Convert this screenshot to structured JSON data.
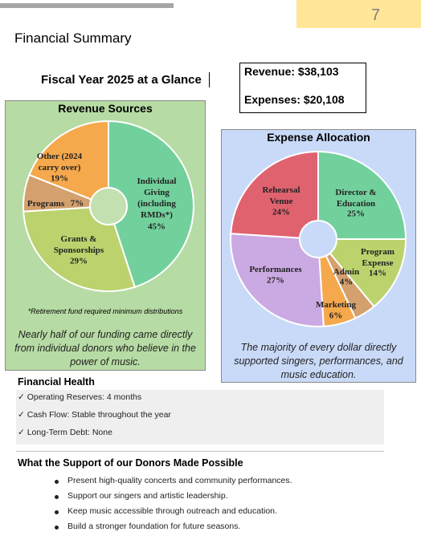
{
  "page_number": "7",
  "header": {
    "title": "Financial Summary"
  },
  "subtitle": "Fiscal Year 2025 at a Glance",
  "totals": [
    "Revenue: $38,103",
    "Expenses: $20,108"
  ],
  "chart_data": [
    {
      "type": "pie",
      "title": "Revenue Sources",
      "categories": [
        "Individual Giving (including RMDs*)",
        "Grants & Sponsorships",
        "Programs",
        "Other (2024 carry over)"
      ],
      "values": [
        45,
        29,
        7,
        19
      ],
      "value_labels": [
        "45%",
        "29%",
        "7%",
        "19%"
      ],
      "colors": [
        "#72d09c",
        "#bcd26d",
        "#d4a06e",
        "#f5a84c"
      ],
      "note": "*Retirement fund required minimum distributions",
      "caption": "Nearly half of our funding came directly from individual donors who believe in the power of music."
    },
    {
      "type": "pie",
      "title": "Expense Allocation",
      "categories": [
        "Director & Education",
        "Program Expense",
        "Admin",
        "Marketing",
        "Performances",
        "Rehearsal Venue"
      ],
      "values": [
        25,
        14,
        4,
        6,
        27,
        24
      ],
      "value_labels": [
        "25%",
        "14%",
        "4%",
        "6%",
        "27%",
        "24%"
      ],
      "colors": [
        "#72d09c",
        "#bcd26d",
        "#d4a06e",
        "#f5a84c",
        "#cba9e2",
        "#e0626f"
      ],
      "caption": "The majority of every dollar directly supported singers, performances, and music education."
    }
  ],
  "health": {
    "title": "Financial Health",
    "items": [
      "✓ Operating Reserves: 4 months",
      "✓ Cash Flow: Stable throughout the year",
      "✓ Long-Term Debt: None"
    ]
  },
  "support": {
    "title": "What the Support of our Donors Made Possible",
    "items": [
      "Present high-quality concerts and community performances.",
      "Support our singers and artistic leadership.",
      "Keep music accessible through outreach and education.",
      "Build a stronger foundation for future seasons."
    ]
  }
}
